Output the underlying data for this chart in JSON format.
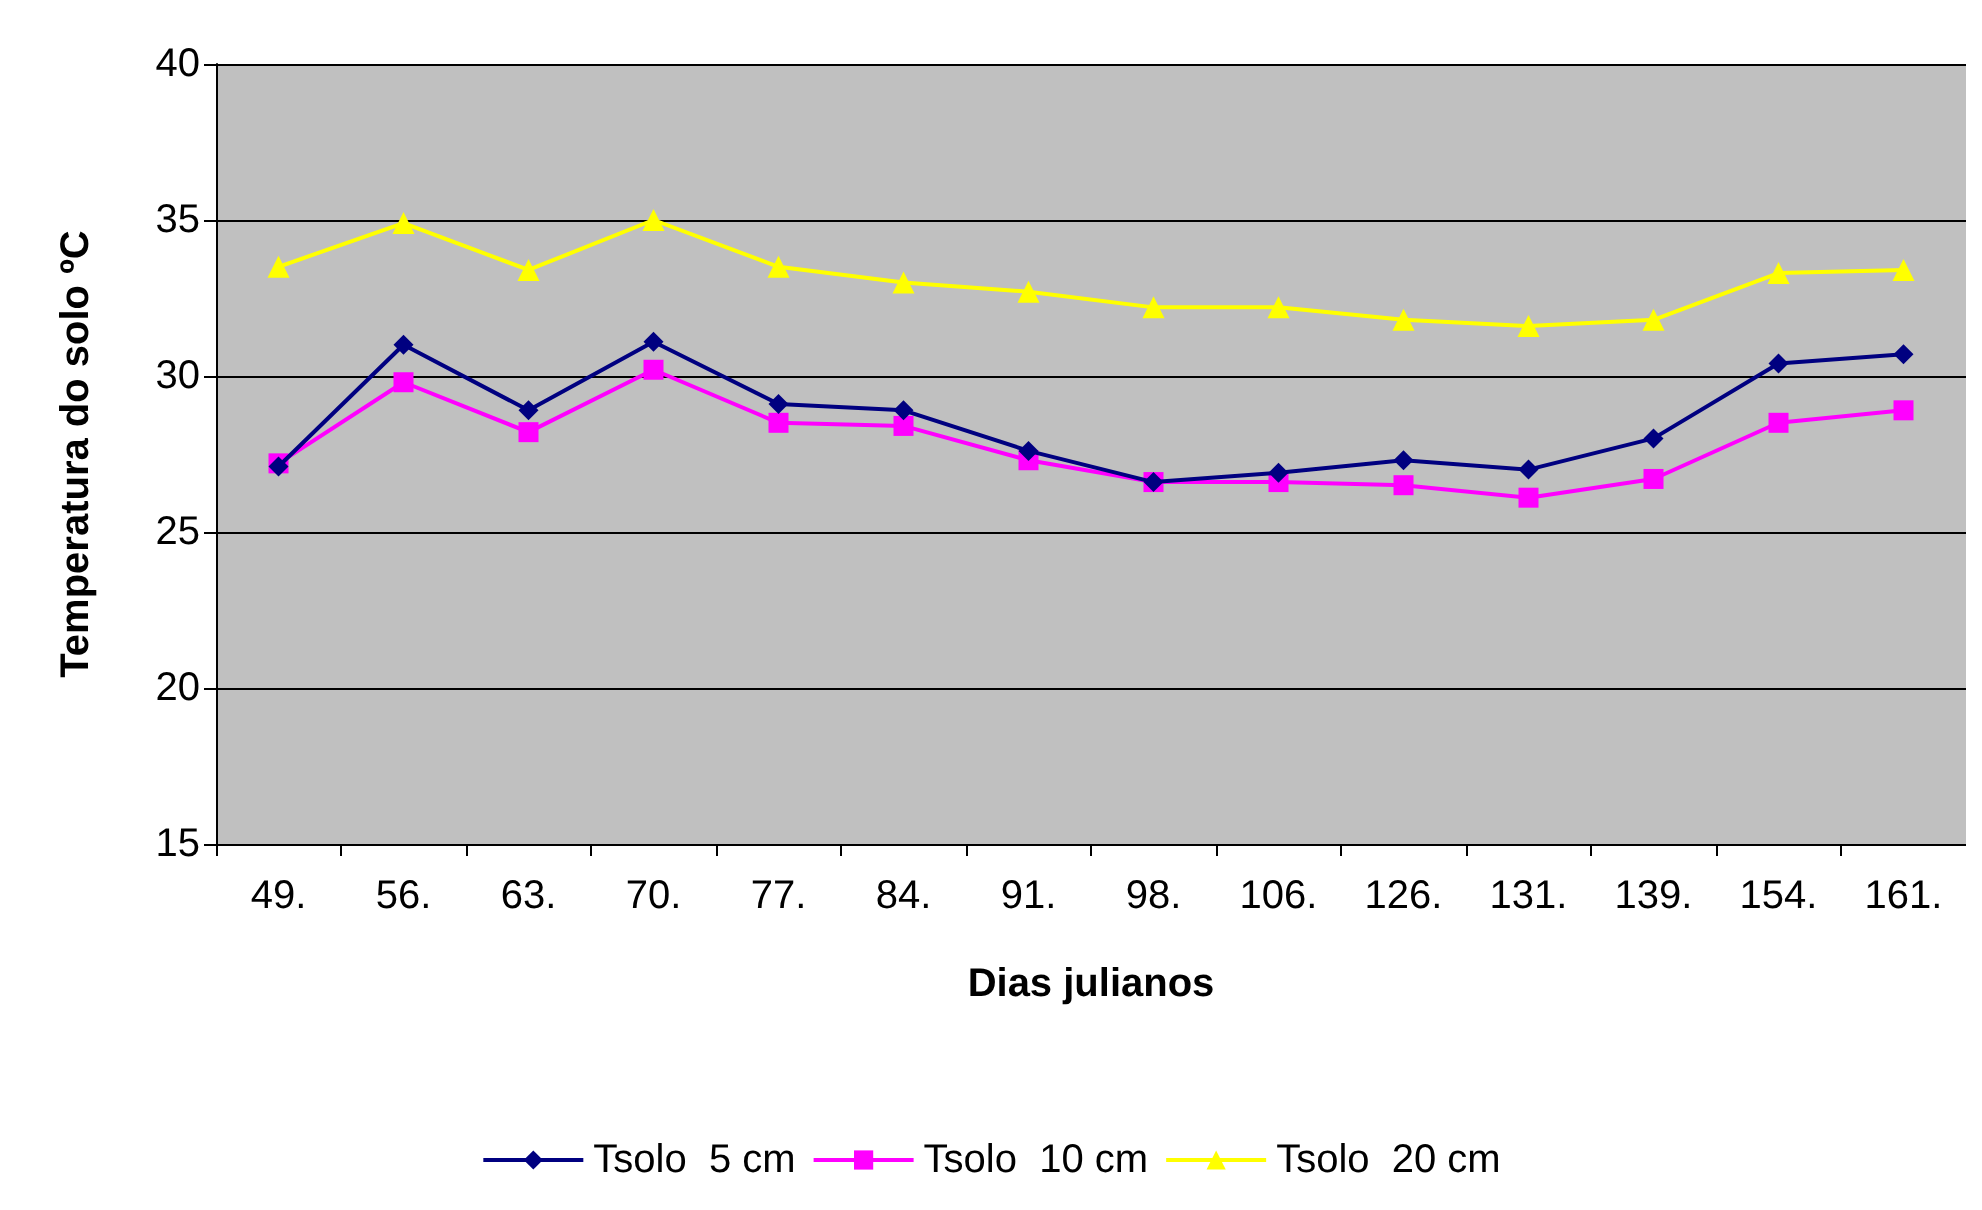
{
  "chart_data": {
    "type": "line",
    "xlabel": "Dias julianos",
    "ylabel": "Temperatura do solo ºC",
    "categories": [
      "49.",
      "56.",
      "63.",
      "70.",
      "77.",
      "84.",
      "91.",
      "98.",
      "106.",
      "126.",
      "131.",
      "139.",
      "154.",
      "161."
    ],
    "series": [
      {
        "name": "Tsolo  5 cm",
        "color": "#000080",
        "marker": "diamond",
        "values": [
          27.1,
          31.0,
          28.9,
          31.1,
          29.1,
          28.9,
          27.6,
          26.6,
          26.9,
          27.3,
          27.0,
          28.0,
          30.4,
          30.7
        ]
      },
      {
        "name": "Tsolo  10 cm",
        "color": "#ff00ff",
        "marker": "square",
        "values": [
          27.2,
          29.8,
          28.2,
          30.2,
          28.5,
          28.4,
          27.3,
          26.6,
          26.6,
          26.5,
          26.1,
          26.7,
          28.5,
          28.9
        ]
      },
      {
        "name": "Tsolo  20 cm",
        "color": "#ffff00",
        "marker": "triangle",
        "values": [
          33.5,
          34.9,
          33.4,
          35.0,
          33.5,
          33.0,
          32.7,
          32.2,
          32.2,
          31.8,
          31.6,
          31.8,
          33.3,
          33.4
        ]
      }
    ],
    "ylim": [
      15,
      40
    ],
    "yticks": [
      15,
      20,
      25,
      30,
      35,
      40
    ],
    "grid": "y",
    "legend": "bottom",
    "line_style": "solid"
  }
}
